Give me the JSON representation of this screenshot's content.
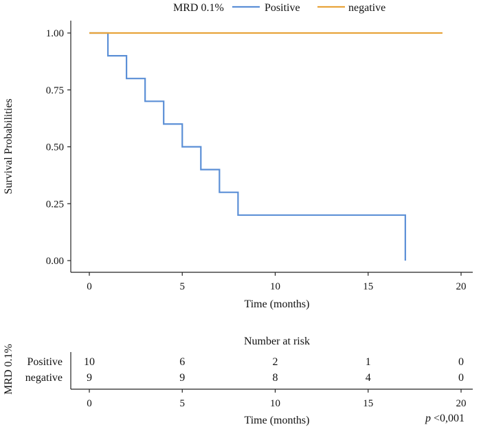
{
  "chart_data": {
    "type": "line",
    "step": true,
    "legend": {
      "title": "MRD 0.1%",
      "placement": "top"
    },
    "ylabel": "Survival Probabilities",
    "xlabel": "Time (months)",
    "xlim": [
      0,
      20
    ],
    "ylim": [
      0,
      1
    ],
    "xticks": [
      "0",
      "5",
      "10",
      "15",
      "20"
    ],
    "yticks": [
      "0.00",
      "0.25",
      "0.50",
      "0.75",
      "1.00"
    ],
    "series": [
      {
        "name": "Positive",
        "color": "#5b8fd6",
        "x": [
          0,
          1,
          2,
          3,
          4,
          5,
          6,
          7,
          8,
          17
        ],
        "y": [
          1.0,
          0.9,
          0.8,
          0.7,
          0.6,
          0.5,
          0.4,
          0.3,
          0.2,
          0.0
        ]
      },
      {
        "name": "negative",
        "color": "#e8a33a",
        "x": [
          0,
          19
        ],
        "y": [
          1.0,
          1.0
        ]
      }
    ],
    "risk_table": {
      "title": "Number at risk",
      "strata_label": "MRD 0.1%",
      "xlabel": "Time (months)",
      "times": [
        "0",
        "5",
        "10",
        "15",
        "20"
      ],
      "rows": [
        {
          "name": "Positive",
          "color": "#5b8fd6",
          "counts": [
            "10",
            "6",
            "2",
            "1",
            "0"
          ]
        },
        {
          "name": "negative",
          "color": "#e8a33a",
          "counts": [
            "9",
            "9",
            "8",
            "4",
            "0"
          ]
        }
      ]
    },
    "p_value": {
      "symbol": "p",
      "value": "<0,001"
    }
  }
}
